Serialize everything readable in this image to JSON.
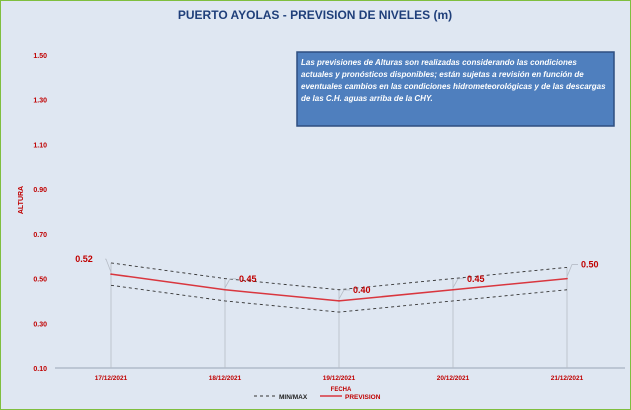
{
  "chart_data": {
    "type": "line",
    "title": "PUERTO AYOLAS - PREVISION DE NIVELES (m)",
    "xlabel": "FECHA",
    "ylabel": "ALTURA",
    "categories": [
      "17/12/2021",
      "18/12/2021",
      "19/12/2021",
      "20/12/2021",
      "21/12/2021"
    ],
    "ylim": [
      0.1,
      1.5
    ],
    "yticks": [
      "1.50",
      "1.30",
      "1.10",
      "0.90",
      "0.70",
      "0.50",
      "0.30",
      "0.10"
    ],
    "ytick_values": [
      1.5,
      1.3,
      1.1,
      0.9,
      0.7,
      0.5,
      0.3,
      0.1
    ],
    "series": [
      {
        "name": "PREVISION",
        "values": [
          0.52,
          0.45,
          0.4,
          0.45,
          0.5
        ],
        "color": "#d9363e",
        "style": "solid"
      },
      {
        "name": "MIN/MAX",
        "upper": [
          0.57,
          0.5,
          0.45,
          0.5,
          0.55
        ],
        "lower": [
          0.47,
          0.4,
          0.35,
          0.4,
          0.45
        ],
        "color": "#333333",
        "style": "dashed"
      }
    ],
    "data_labels": [
      "0.52",
      "0.45",
      "0.40",
      "0.45",
      "0.50"
    ],
    "grid": false,
    "legend_position": "bottom-center",
    "note": "Las previsiones de Alturas son realizadas considerando las condiciones actuales y pronósticos disponibles; están sujetas a revisión en función de eventuales cambios en las condiciones hidrometeorológicas y de las descargas de las C.H. aguas arriba de la CHY.",
    "colors": {
      "background": "#dfe7f2",
      "title": "#1f3f7a",
      "axis_title": "#c00000",
      "note_box": "#4f7fbe",
      "note_border": "#2f4f80",
      "label": "#c00000",
      "frame": "#7fbf3f"
    }
  }
}
